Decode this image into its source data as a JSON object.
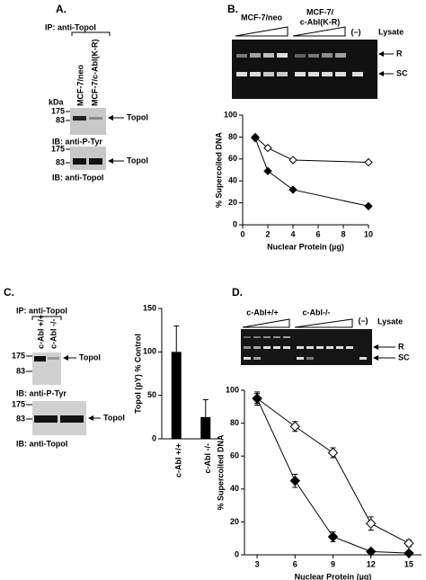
{
  "panel_a": {
    "label": "A.",
    "ip": "IP: anti-TopoI",
    "lanes": [
      "MCF-7/neo",
      "MCF-7/c-Abl(K-R)"
    ],
    "kda": "kDa",
    "markers_1": [
      "175",
      "83"
    ],
    "band_1": "TopoI",
    "ib_1": "IB: anti-P-Tyr",
    "markers_2": [
      "175",
      "83"
    ],
    "band_2": "TopoI",
    "ib_2": "IB: anti-TopoI"
  },
  "panel_b": {
    "label": "B.",
    "group_1": "MCF-7/neo",
    "group_2": [
      "MCF-7/",
      "c-Abl(K-R)"
    ],
    "control": "(–)",
    "lysate": "Lysate",
    "bands": [
      "R",
      "SC"
    ]
  },
  "panel_c": {
    "label": "C.",
    "ip": "IP: anti-TopoI",
    "lanes": [
      "c-Abl +/+",
      "c-Abl -/-"
    ],
    "kda": "kDa",
    "markers_1": [
      "175",
      "83"
    ],
    "band_1": "TopoI",
    "ib_1": "IB: anti-P-Tyr",
    "markers_2": [
      "175",
      "83"
    ],
    "band_2": "TopoI",
    "ib_2": "IB: anti-TopoI"
  },
  "panel_d": {
    "label": "D.",
    "group_1": "c-Abl+/+",
    "group_2": "c-Abl-/-",
    "control": "(–)",
    "lysate": "Lysate",
    "bands": [
      "R",
      "SC"
    ]
  },
  "chart_data": [
    {
      "type": "line",
      "xlabel": "Nuclear Protein (µg)",
      "ylabel": "% Supercoiled DNA",
      "x": [
        1,
        2,
        4,
        10
      ],
      "xlim": [
        0,
        10
      ],
      "xticks": [
        0,
        2,
        4,
        6,
        8,
        10
      ],
      "ylim": [
        0,
        100
      ],
      "yticks": [
        0,
        20,
        40,
        60,
        80,
        100
      ],
      "series": [
        {
          "color": "#000000",
          "filled": false,
          "values": [
            80,
            70,
            59,
            57
          ]
        },
        {
          "color": "#000000",
          "filled": true,
          "values": [
            79,
            49,
            32,
            17
          ]
        }
      ]
    },
    {
      "type": "bar",
      "ylabel": "TopoI (pY) % Control",
      "categories": [
        "c-Abl +/+",
        "c-Abl -/-"
      ],
      "values": [
        100,
        25
      ],
      "errors": [
        30,
        20
      ],
      "color": "#000000",
      "ylim": [
        0,
        150
      ],
      "yticks": [
        0,
        50,
        100,
        150
      ]
    },
    {
      "type": "line",
      "xlabel": "Nuclear Protein (µg)",
      "ylabel": "% Supercoiled DNA",
      "x": [
        3,
        6,
        9,
        12,
        15
      ],
      "xlim": [
        2,
        16
      ],
      "xticks": [
        3,
        6,
        9,
        12,
        15
      ],
      "ylim": [
        0,
        100
      ],
      "yticks": [
        0,
        20,
        40,
        60,
        80,
        100
      ],
      "series": [
        {
          "color": "#000000",
          "filled": false,
          "values": [
            95,
            78,
            62,
            19,
            7
          ],
          "errors": [
            3,
            3,
            3,
            4,
            2
          ]
        },
        {
          "color": "#000000",
          "filled": true,
          "values": [
            95,
            45,
            11,
            2,
            1
          ],
          "errors": [
            4,
            4,
            3,
            1,
            1
          ]
        }
      ]
    }
  ]
}
